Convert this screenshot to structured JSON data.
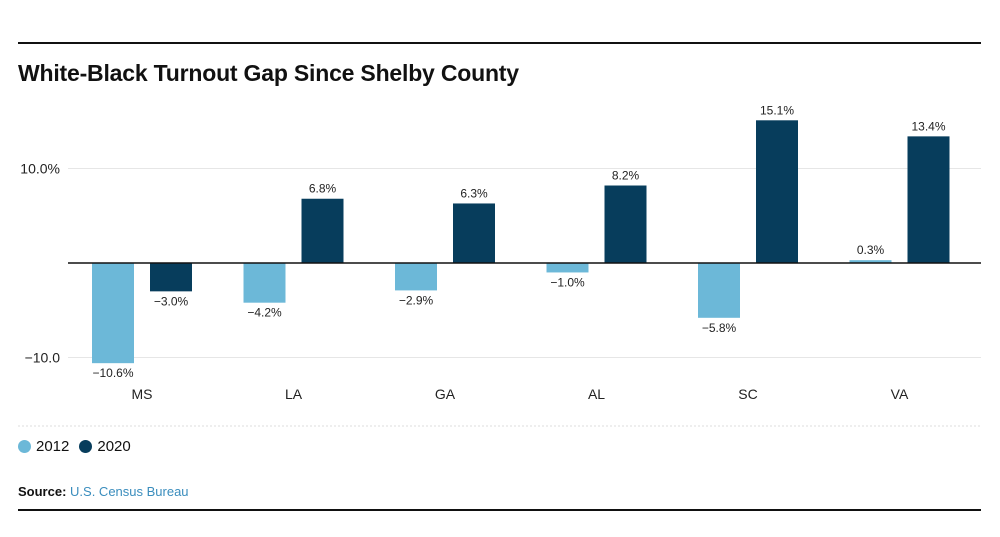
{
  "title": "White-Black Turnout Gap Since Shelby County",
  "source": {
    "label": "Source:",
    "link_text": "U.S. Census Bureau"
  },
  "legend": [
    {
      "name": "2012",
      "color": "#6cb8d8"
    },
    {
      "name": "2020",
      "color": "#073d5c"
    }
  ],
  "chart_data": {
    "type": "bar",
    "title": "White-Black Turnout Gap Since Shelby County",
    "categories": [
      "MS",
      "LA",
      "GA",
      "AL",
      "SC",
      "VA"
    ],
    "series": [
      {
        "name": "2012",
        "color": "#6cb8d8",
        "values": [
          -10.6,
          -4.2,
          -2.9,
          -1.0,
          -5.8,
          0.3
        ],
        "labels": [
          "−10.6%",
          "−4.2%",
          "−2.9%",
          "−1.0%",
          "−5.8%",
          "0.3%"
        ]
      },
      {
        "name": "2020",
        "color": "#073d5c",
        "values": [
          -3.0,
          6.8,
          6.3,
          8.2,
          15.1,
          13.4
        ],
        "labels": [
          "−3.0%",
          "6.8%",
          "6.3%",
          "8.2%",
          "15.1%",
          "13.4%"
        ]
      }
    ],
    "yticks": [
      10,
      -10
    ],
    "ytick_labels": [
      "10.0%",
      "−10.0"
    ],
    "ylim": [
      -10.6,
      15.1
    ],
    "grid": true,
    "legend_position": "bottom-left",
    "xlabel": "",
    "ylabel": ""
  }
}
